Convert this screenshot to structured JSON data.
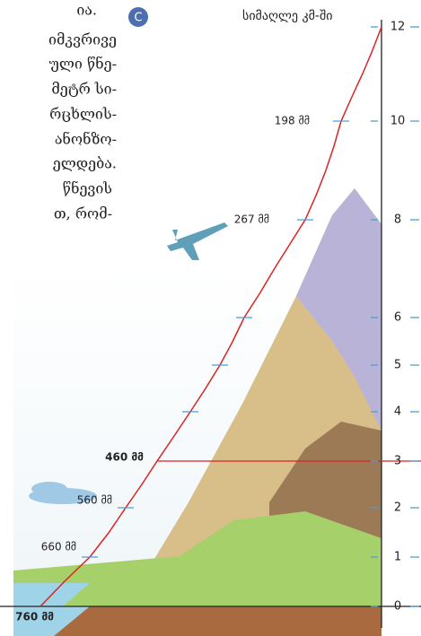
{
  "text_lines": [
    "ია.",
    "იმკვრივე",
    "ული წნე-",
    "მეტრ სი-",
    "რცხლის-",
    "ანონზო-",
    "ელდება.",
    "წნევის",
    "თ,  რომ-"
  ],
  "badge": "C",
  "axis": {
    "title": "სიმაღლე კმ-ში",
    "ticks": [
      "12",
      "10",
      "8",
      "6",
      "5",
      "4",
      "3",
      "2",
      "1",
      "0"
    ]
  },
  "pressure_labels": [
    "198 მმ",
    "267 მმ",
    "460 მმ",
    "560 მმ",
    "660 მმ",
    "760 მმ"
  ]
}
